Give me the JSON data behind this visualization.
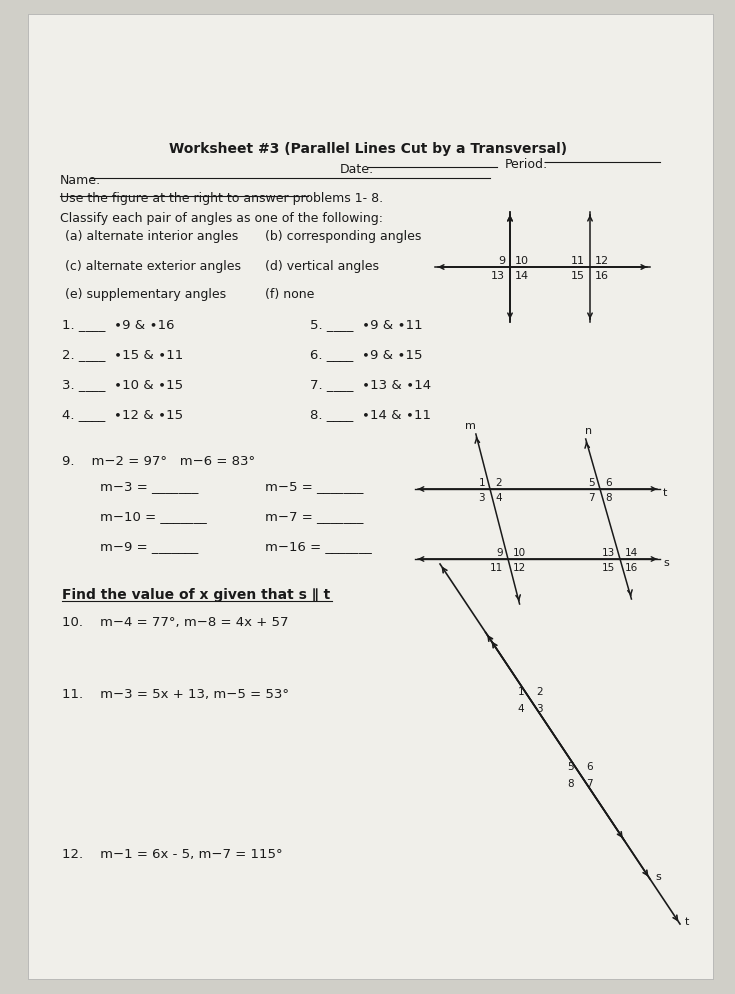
{
  "title": "Worksheet #3 (Parallel Lines Cut by a Transversal)",
  "bg_color": "#d0cfc8",
  "paper_color": "#f0efea",
  "text_color": "#1a1a1a",
  "name_label": "Name:",
  "date_label": "Date:",
  "period_label": "Period:",
  "instruction1": "Use the figure at the right to answer problems 1- 8.",
  "instruction2": "Classify each pair of angles as one of the following:",
  "options": [
    [
      "(a) alternate interior angles",
      "(b) corresponding angles"
    ],
    [
      "(c) alternate exterior angles",
      "(d) vertical angles"
    ],
    [
      "(e) supplementary angles",
      "(f) none"
    ]
  ],
  "problems_1_8": [
    [
      "1. ____  ∙9 & ∙16",
      "5. ____  ∙9 & ∙11"
    ],
    [
      "2. ____  ∙15 & ∙11",
      "6. ____  ∙9 & ∙15"
    ],
    [
      "3. ____  ∙10 & ∙15",
      "7. ____  ∙13 & ∙14"
    ],
    [
      "4. ____  ∙12 & ∙15",
      "8. ____  ∙14 & ∙11"
    ]
  ],
  "problem9_header": "9.    m−2 = 97°   m−6 = 83°",
  "problem9_lines": [
    [
      "m−3 = _______",
      "m−5 = _______"
    ],
    [
      "m−10 = _______",
      "m−7 = _______"
    ],
    [
      "m−9 = _______",
      "m−16 = _______"
    ]
  ],
  "find_x_header": "Find the value of x given that s ∥ t",
  "problem10": "10.    m−4 = 77°, m−8 = 4x + 57",
  "problem11": "11.    m−3 = 5x + 13, m−5 = 53°",
  "problem12": "12.    m−1 = 6x - 5, m−7 = 115°"
}
